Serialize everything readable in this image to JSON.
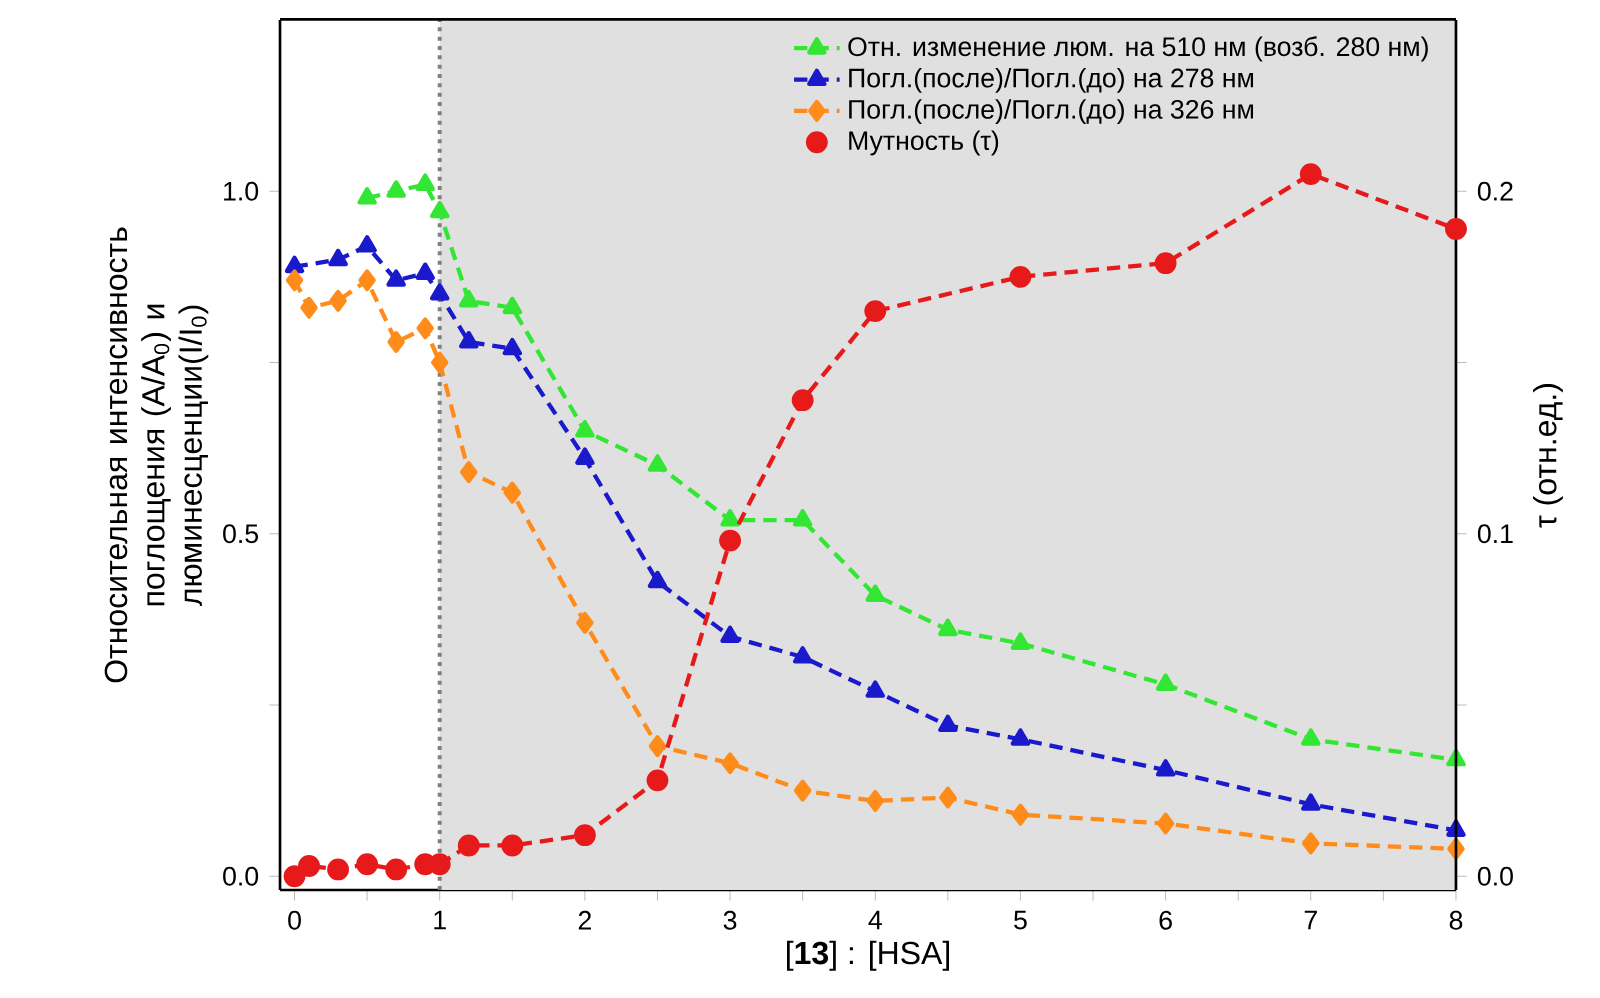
{
  "chart_data": {
    "type": "line",
    "xlabel": "[**13**] : [HSA]",
    "ylabel": "Относительная интенсивность поглощения (A/A$_{0}$) и люминесценции(I/I$_{0}$)",
    "y2label": "τ (отн.ед.)",
    "xlim": [
      -0.1,
      8
    ],
    "ylim": [
      -0.02,
      1.25
    ],
    "y2lim": [
      -0.004,
      0.25
    ],
    "xticks": [
      0,
      {
        "value": 0.5,
        "label": null
      },
      1,
      {
        "value": 1.5,
        "label": null
      },
      2,
      {
        "value": 2.5,
        "label": null
      },
      3,
      {
        "value": 3.5,
        "label": null
      },
      4,
      {
        "value": 4.5,
        "label": null
      },
      5,
      {
        "value": 5.5,
        "label": null
      },
      6,
      {
        "value": 6.5,
        "label": null
      },
      7,
      {
        "value": 7.5,
        "label": null
      },
      8
    ],
    "yticks": [
      {
        "value": 0,
        "label": "0.0"
      },
      {
        "value": 0.25,
        "label": null
      },
      {
        "value": 0.5,
        "label": "0.5"
      },
      {
        "value": 0.75,
        "label": null
      },
      {
        "value": 1,
        "label": "1.0"
      }
    ],
    "y2ticks": [
      {
        "value": 0,
        "label": "0.0"
      },
      {
        "value": 0.05,
        "label": null
      },
      {
        "value": 0.1,
        "label": "0.1"
      },
      {
        "value": 0.15,
        "label": null
      },
      {
        "value": 0.2,
        "label": "0.2"
      }
    ],
    "legend": "top right",
    "grid": false,
    "line_style": "dashed",
    "ref_lines": [
      {
        "axis": "x",
        "value": 1,
        "color": "#808080",
        "line_style": "dotted"
      }
    ],
    "bands": [
      {
        "axis": "x",
        "from": 1,
        "to": 8,
        "color": "#e0e0e0"
      }
    ],
    "series": [
      {
        "name": "Отн. изменение люм. на 510 нм (возб. 280 нм)",
        "color": "#33e633",
        "marker": "triangle",
        "x": [
          0.5,
          0.7,
          0.9,
          1.0,
          1.2,
          1.5,
          2,
          2.5,
          3,
          3.5,
          4,
          4.5,
          5,
          6,
          7,
          8
        ],
        "values": [
          0.99,
          1.0,
          1.01,
          0.97,
          0.84,
          0.83,
          0.65,
          0.6,
          0.52,
          0.52,
          0.41,
          0.36,
          0.34,
          0.28,
          0.2,
          0.17
        ]
      },
      {
        "name": "Погл.(после)/Погл.(до) на 278 нм",
        "color": "#1a1acc",
        "marker": "triangle down",
        "x": [
          0,
          0.3,
          0.5,
          0.7,
          0.9,
          1.0,
          1.2,
          1.5,
          2,
          2.5,
          3,
          3.5,
          4,
          4.5,
          5,
          6,
          7,
          8
        ],
        "values": [
          0.89,
          0.9,
          0.92,
          0.87,
          0.88,
          0.85,
          0.78,
          0.77,
          0.61,
          0.43,
          0.35,
          0.32,
          0.27,
          0.22,
          0.2,
          0.155,
          0.105,
          0.067
        ]
      },
      {
        "name": "Погл.(после)/Погл.(до) на 326 нм",
        "color": "#ff8c1a",
        "marker": "diamond",
        "x": [
          0,
          0.1,
          0.3,
          0.5,
          0.7,
          0.9,
          1.0,
          1.2,
          1.5,
          2,
          2.5,
          3,
          3.5,
          4,
          4.5,
          5,
          6,
          7,
          8
        ],
        "values": [
          0.87,
          0.83,
          0.84,
          0.87,
          0.78,
          0.8,
          0.75,
          0.59,
          0.56,
          0.37,
          0.19,
          0.165,
          0.125,
          0.11,
          0.115,
          0.09,
          0.077,
          0.048,
          0.04
        ]
      },
      {
        "name": "Мутность (τ)",
        "color": "#e61a1a",
        "marker": "circle",
        "axis": "y2",
        "x": [
          0,
          0.1,
          0.3,
          0.5,
          0.7,
          0.9,
          1.0,
          1.2,
          1.5,
          2,
          2.5,
          3,
          3.5,
          4,
          5,
          6,
          7,
          8
        ],
        "values": [
          0.0,
          0.003,
          0.002,
          0.0035,
          0.002,
          0.0035,
          0.0035,
          0.009,
          0.009,
          0.012,
          0.028,
          0.098,
          0.139,
          0.165,
          0.175,
          0.179,
          0.205,
          0.189
        ]
      }
    ]
  }
}
